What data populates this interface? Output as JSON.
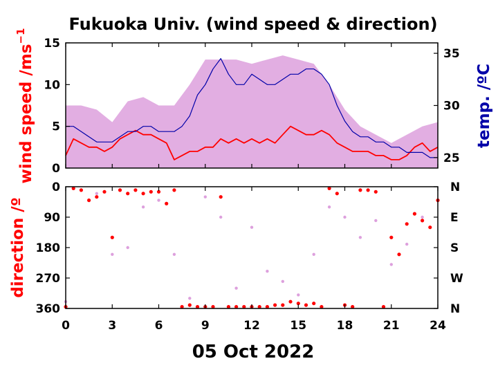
{
  "colors": {
    "wind_max": "#dda0dd",
    "wind_mean": "#ff0000",
    "temperature": "#0000a8",
    "axis": "#000000"
  },
  "chart_data": [
    {
      "type": "line",
      "title": "Fukuoka Univ. (wind speed & direction)",
      "xlabel": "05 Oct 2022",
      "xlim": [
        0,
        24
      ],
      "x_ticks": [
        0,
        3,
        6,
        9,
        12,
        15,
        18,
        21,
        24
      ],
      "ylabel_left": "wind speed /ms",
      "ylabel_left_exp": "−1",
      "ylim_left": [
        0,
        15
      ],
      "y_ticks_left": [
        0,
        5,
        10,
        15
      ],
      "ylabel_right": "temp. /ºC",
      "ylim_right": [
        24,
        36
      ],
      "y_ticks_right": [
        25,
        30,
        35
      ],
      "grid": false,
      "series": [
        {
          "axis": "left",
          "color": "#dda0dd",
          "x": [
            0,
            1,
            2,
            3,
            4,
            5,
            6,
            7,
            8,
            9,
            10,
            11,
            12,
            13,
            14,
            15,
            16,
            17,
            18,
            19,
            20,
            21,
            22,
            23,
            24
          ],
          "values": [
            7.5,
            7.5,
            7,
            5.5,
            8,
            8.5,
            7.5,
            7.5,
            10,
            13,
            13,
            13,
            12.5,
            13,
            13.5,
            13,
            12.5,
            10,
            7,
            5,
            4,
            3,
            4,
            5,
            5.5
          ]
        },
        {
          "axis": "left",
          "color": "#ff0000",
          "x": [
            0,
            0.5,
            1,
            1.5,
            2,
            2.5,
            3,
            3.5,
            4,
            4.5,
            5,
            5.5,
            6,
            6.5,
            7,
            7.5,
            8,
            8.5,
            9,
            9.5,
            10,
            10.5,
            11,
            11.5,
            12,
            12.5,
            13,
            13.5,
            14,
            14.5,
            15,
            15.5,
            16,
            16.5,
            17,
            17.5,
            18,
            18.5,
            19,
            19.5,
            20,
            20.5,
            21,
            21.5,
            22,
            22.5,
            23,
            23.5,
            24
          ],
          "values": [
            1.5,
            3.5,
            3,
            2.5,
            2.5,
            2,
            2.5,
            3.5,
            4,
            4.5,
            4,
            4,
            3.5,
            3,
            1,
            1.5,
            2,
            2,
            2.5,
            2.5,
            3.5,
            3,
            3.5,
            3,
            3.5,
            3,
            3.5,
            3,
            4,
            5,
            4.5,
            4,
            4,
            4.5,
            4,
            3,
            2.5,
            2,
            2,
            2,
            1.5,
            1.5,
            1,
            1,
            1.5,
            2.5,
            3,
            2,
            2.5
          ]
        },
        {
          "axis": "right",
          "color": "#0000a8",
          "x": [
            0,
            0.5,
            1,
            1.5,
            2,
            2.5,
            3,
            3.5,
            4,
            4.5,
            5,
            5.5,
            6,
            6.5,
            7,
            7.5,
            8,
            8.5,
            9,
            9.5,
            10,
            10.5,
            11,
            11.5,
            12,
            12.5,
            13,
            13.5,
            14,
            14.5,
            15,
            15.5,
            16,
            16.5,
            17,
            17.5,
            18,
            18.5,
            19,
            19.5,
            20,
            20.5,
            21,
            21.5,
            22,
            22.5,
            23,
            23.5,
            24
          ],
          "values": [
            28,
            28,
            27.5,
            27,
            26.5,
            26.5,
            26.5,
            27,
            27.5,
            27.5,
            28,
            28,
            27.5,
            27.5,
            27.5,
            28,
            29,
            31,
            32,
            33.5,
            34.5,
            33,
            32,
            32,
            33,
            32.5,
            32,
            32,
            32.5,
            33,
            33,
            33.5,
            33.5,
            33,
            32,
            30,
            28.5,
            27.5,
            27,
            27,
            26.5,
            26.5,
            26,
            26,
            25.5,
            25.5,
            25.5,
            25,
            25
          ]
        }
      ]
    },
    {
      "type": "scatter",
      "xlim": [
        0,
        24
      ],
      "x_ticks": [
        0,
        3,
        6,
        9,
        12,
        15,
        18,
        21,
        24
      ],
      "ylabel_left": "direction /º",
      "ylim_left": [
        0,
        360
      ],
      "y_ticks_left": [
        0,
        90,
        180,
        270,
        360
      ],
      "y_inverted": true,
      "y_ticks_right": [
        {
          "value": 0,
          "label": "N"
        },
        {
          "value": 90,
          "label": "E"
        },
        {
          "value": 180,
          "label": "S"
        },
        {
          "value": 270,
          "label": "W"
        },
        {
          "value": 360,
          "label": "N"
        }
      ],
      "grid": false,
      "series": [
        {
          "color": "#dda0dd",
          "x": [
            0,
            1,
            2,
            3,
            4,
            5,
            6,
            7,
            8,
            9,
            10,
            11,
            12,
            13,
            14,
            15,
            16,
            17,
            18,
            19,
            20,
            21,
            22,
            23,
            24
          ],
          "values": [
            340,
            10,
            20,
            200,
            180,
            60,
            40,
            200,
            330,
            30,
            90,
            300,
            120,
            250,
            280,
            320,
            200,
            60,
            90,
            150,
            100,
            230,
            170,
            90,
            40
          ]
        },
        {
          "color": "#ff0000",
          "x": [
            0,
            0.5,
            1,
            1.5,
            2,
            2.5,
            3,
            3.5,
            4,
            4.5,
            5,
            5.5,
            6,
            6.5,
            7,
            7.5,
            8,
            8.5,
            9,
            9.5,
            10,
            10.5,
            11,
            11.5,
            12,
            12.5,
            13,
            13.5,
            14,
            14.5,
            15,
            15.5,
            16,
            16.5,
            17,
            17.5,
            18,
            18.5,
            19,
            19.5,
            20,
            20.5,
            21,
            21.5,
            22,
            22.5,
            23,
            23.5,
            24
          ],
          "values": [
            355,
            5,
            10,
            40,
            30,
            15,
            150,
            10,
            20,
            10,
            20,
            15,
            15,
            50,
            10,
            355,
            350,
            355,
            355,
            355,
            30,
            355,
            355,
            355,
            355,
            355,
            355,
            350,
            350,
            340,
            345,
            350,
            345,
            355,
            5,
            20,
            350,
            355,
            10,
            10,
            15,
            355,
            150,
            200,
            110,
            80,
            100,
            120,
            40
          ]
        }
      ]
    }
  ]
}
